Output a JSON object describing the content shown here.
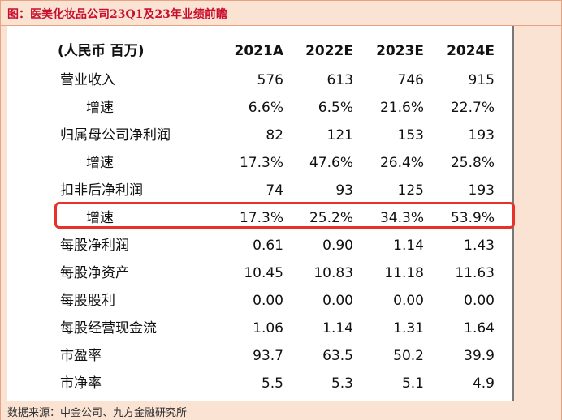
{
  "title": "图：医美化妆品公司23Q1及23年业绩前瞻",
  "source": "数据来源：中金公司、九方金融研究所",
  "colors": {
    "accent": "#c8102e",
    "highlight_border": "#e8312a",
    "panel_bg": "#fbe3d4"
  },
  "table": {
    "header": [
      "(人民币 百万)",
      "2021A",
      "2022E",
      "2023E",
      "2024E"
    ],
    "rows": [
      {
        "label": "营业收入",
        "values": [
          "576",
          "613",
          "746",
          "915"
        ]
      },
      {
        "label": "增速",
        "values": [
          "6.6%",
          "6.5%",
          "21.6%",
          "22.7%"
        ]
      },
      {
        "label": "归属母公司净利润",
        "values": [
          "82",
          "121",
          "153",
          "193"
        ]
      },
      {
        "label": "增速",
        "values": [
          "17.3%",
          "47.6%",
          "26.4%",
          "25.8%"
        ]
      },
      {
        "label": "扣非后净利润",
        "values": [
          "74",
          "93",
          "125",
          "193"
        ]
      },
      {
        "label": "增速",
        "values": [
          "17.3%",
          "25.2%",
          "34.3%",
          "53.9%"
        ]
      },
      {
        "label": "每股净利润",
        "values": [
          "0.61",
          "0.90",
          "1.14",
          "1.43"
        ]
      },
      {
        "label": "每股净资产",
        "values": [
          "10.45",
          "10.83",
          "11.18",
          "11.63"
        ]
      },
      {
        "label": "每股股利",
        "values": [
          "0.00",
          "0.00",
          "0.00",
          "0.00"
        ]
      },
      {
        "label": "每股经营现金流",
        "values": [
          "1.06",
          "1.14",
          "1.31",
          "1.64"
        ]
      },
      {
        "label": "市盈率",
        "values": [
          "93.7",
          "63.5",
          "50.2",
          "39.9"
        ]
      },
      {
        "label": "市净率",
        "values": [
          "5.5",
          "5.3",
          "5.1",
          "4.9"
        ]
      }
    ]
  }
}
